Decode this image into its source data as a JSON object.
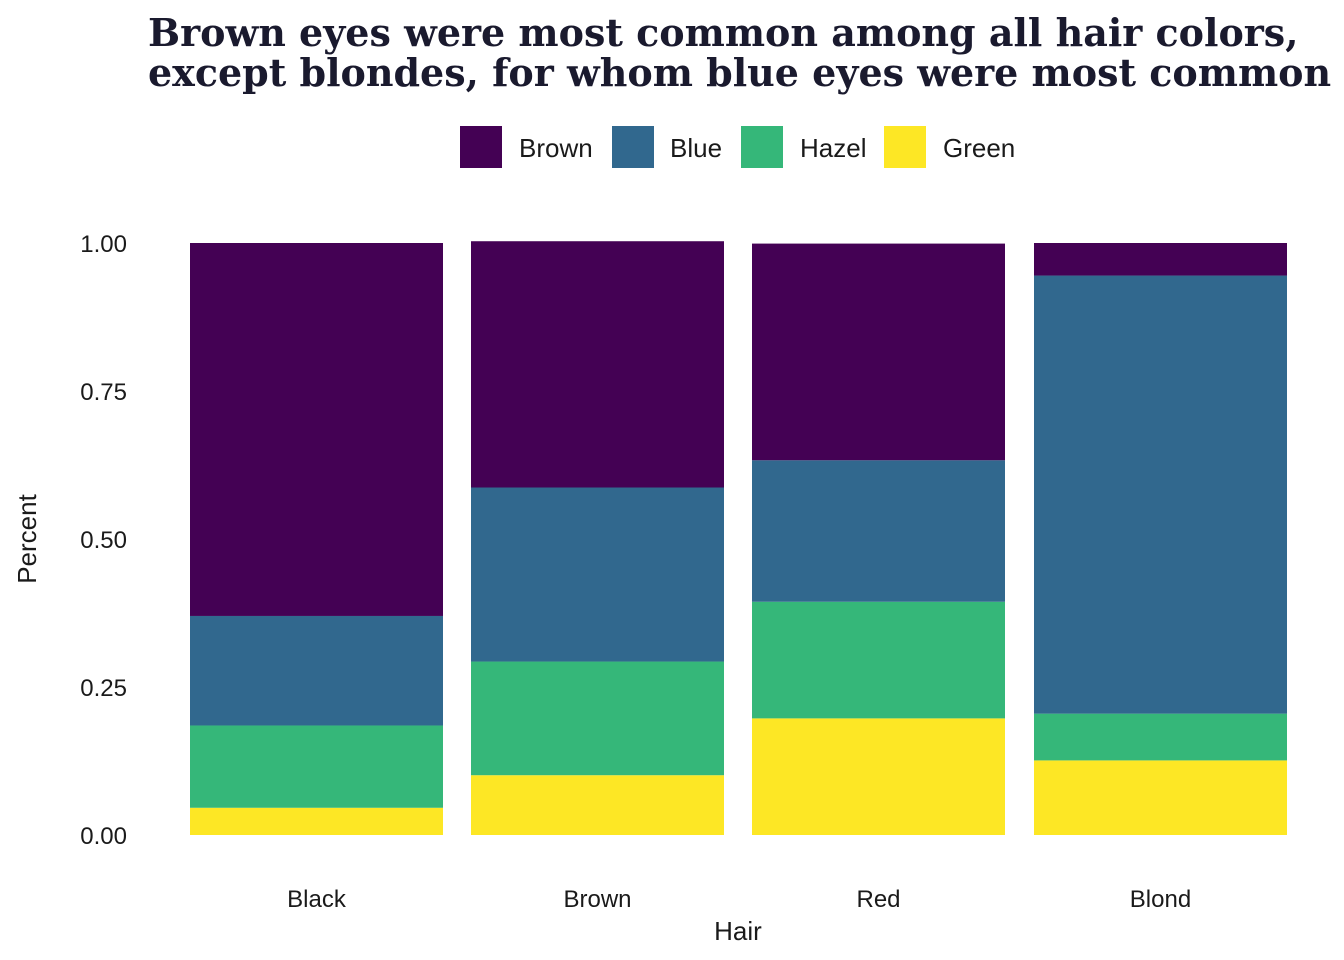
{
  "chart_data": {
    "type": "bar",
    "stacked": true,
    "title_lines": [
      "Brown eyes were most common among all hair colors,",
      "except blondes, for whom blue eyes were most common"
    ],
    "xlabel": "Hair",
    "ylabel": "Percent",
    "ylim": [
      0,
      1
    ],
    "yticks": [
      {
        "value": 0.0,
        "label": "0.00"
      },
      {
        "value": 0.25,
        "label": "0.25"
      },
      {
        "value": 0.5,
        "label": "0.50"
      },
      {
        "value": 0.75,
        "label": "0.75"
      },
      {
        "value": 1.0,
        "label": "1.00"
      }
    ],
    "categories": [
      "Black",
      "Brown",
      "Red",
      "Blond"
    ],
    "legend_position": "top",
    "series": [
      {
        "name": "Green",
        "color": "#FDE725",
        "values": [
          0.046,
          0.101,
          0.197,
          0.126
        ]
      },
      {
        "name": "Hazel",
        "color": "#35B779",
        "values": [
          0.139,
          0.192,
          0.197,
          0.079
        ]
      },
      {
        "name": "Blue",
        "color": "#31688E",
        "values": [
          0.185,
          0.294,
          0.239,
          0.74
        ]
      },
      {
        "name": "Brown",
        "color": "#440154",
        "values": [
          0.63,
          0.416,
          0.366,
          0.055
        ]
      }
    ],
    "legend_order": [
      "Brown",
      "Blue",
      "Hazel",
      "Green"
    ]
  }
}
